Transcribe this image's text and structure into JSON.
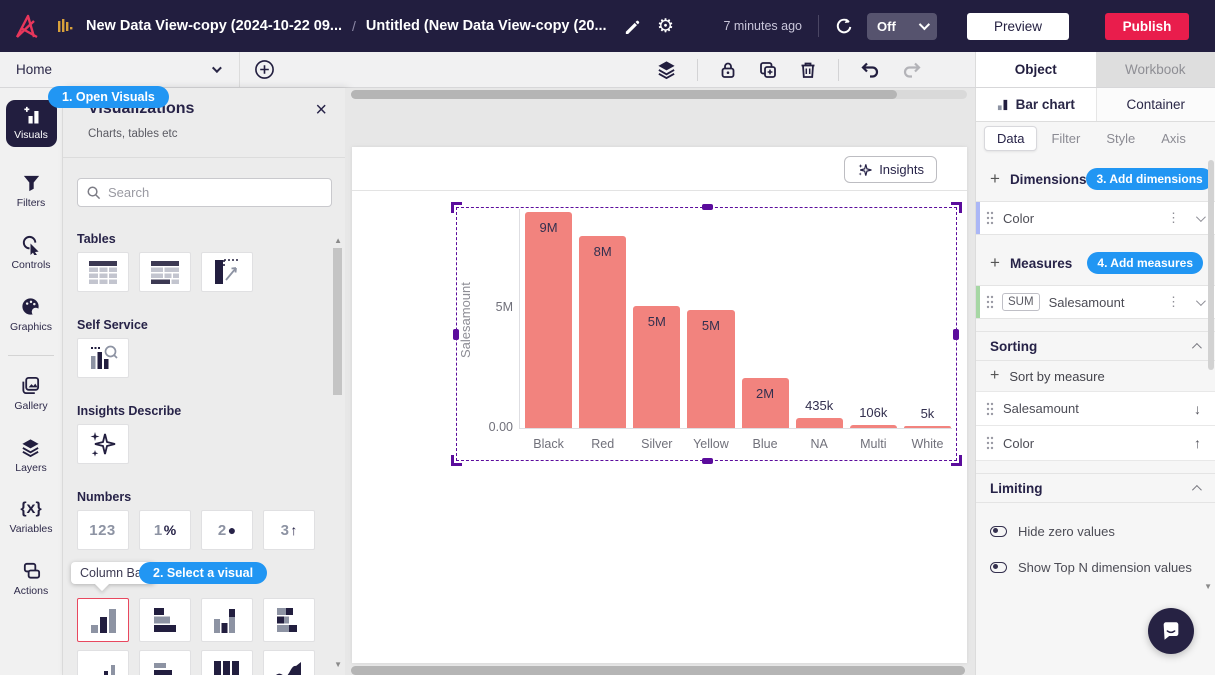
{
  "topbar": {
    "breadcrumb_primary": "New Data View-copy (2024-10-22 09...",
    "breadcrumb_separator": "/",
    "breadcrumb_secondary": "Untitled (New Data View-copy (20...",
    "last_saved": "7 minutes ago",
    "auto_refresh_value": "Off",
    "preview_label": "Preview",
    "publish_label": "Publish"
  },
  "toolbar": {
    "home_label": "Home"
  },
  "panel_tabs": {
    "object_label": "Object",
    "workbook_label": "Workbook"
  },
  "rail": {
    "items": [
      {
        "label": "Visuals"
      },
      {
        "label": "Filters"
      },
      {
        "label": "Controls"
      },
      {
        "label": "Graphics"
      },
      {
        "label": "Gallery"
      },
      {
        "label": "Layers"
      },
      {
        "label": "Variables"
      },
      {
        "label": "Actions"
      }
    ]
  },
  "guide": {
    "step1": "1. Open Visuals",
    "step2": "2. Select a visual",
    "step3": "3. Add dimensions",
    "step4": "4. Add measures"
  },
  "viz_panel": {
    "title": "Visualizations",
    "subtitle": "Charts, tables etc",
    "search_placeholder": "Search",
    "section_tables": "Tables",
    "section_self_service": "Self Service",
    "section_insights": "Insights Describe",
    "section_numbers": "Numbers",
    "numbers_tiles": [
      {
        "num": "123",
        "sym": ""
      },
      {
        "num": "1",
        "sym": "%"
      },
      {
        "num": "2",
        "sym": "●"
      },
      {
        "num": "3",
        "sym": "↑"
      }
    ],
    "tooltip_label": "Column Bar"
  },
  "canvas": {
    "insights_label": "Insights"
  },
  "chart_data": {
    "type": "bar",
    "categories": [
      "Black",
      "Red",
      "Silver",
      "Yellow",
      "Blue",
      "NA",
      "Multi",
      "White"
    ],
    "values": [
      9000000,
      8000000,
      5100000,
      4900000,
      2100000,
      435000,
      106000,
      5000
    ],
    "value_labels": [
      "9M",
      "8M",
      "5M",
      "5M",
      "2M",
      "435k",
      "106k",
      "5k"
    ],
    "title": "",
    "xlabel": "",
    "ylabel": "Salesamount",
    "yticks": [
      {
        "label": "5M",
        "value": 5000000
      },
      {
        "label": "0.00",
        "value": 0
      }
    ],
    "ylim": [
      0,
      9000000
    ],
    "grid": false,
    "legend": false,
    "bar_color": "#F2837E"
  },
  "right_panel": {
    "object_tab": "Bar chart",
    "container_tab": "Container",
    "subtabs": [
      {
        "label": "Data"
      },
      {
        "label": "Filter"
      },
      {
        "label": "Style"
      },
      {
        "label": "Axis"
      }
    ],
    "dimensions_header": "Dimensions",
    "dimension_rows": [
      {
        "label": "Color"
      }
    ],
    "measures_header": "Measures",
    "measure_rows": [
      {
        "agg": "SUM",
        "label": "Salesamount"
      }
    ],
    "sorting_header": "Sorting",
    "sort_add_label": "Sort by measure",
    "sort_rows": [
      {
        "label": "Salesamount",
        "arrow": "↓"
      },
      {
        "label": "Color",
        "arrow": "↑"
      }
    ],
    "limiting_header": "Limiting",
    "toggles": [
      {
        "label": "Hide zero values"
      },
      {
        "label": "Show Top N dimension values"
      }
    ]
  },
  "colors": {
    "topbar_bg": "#221E3F",
    "accent_blue": "#2196F3",
    "publish_red": "#E91D4C",
    "bar_salmon": "#F2837E",
    "selection_purple": "#5B0C9C",
    "dimension_accent": "#ABB7F6",
    "measure_accent": "#A6D7A4"
  }
}
